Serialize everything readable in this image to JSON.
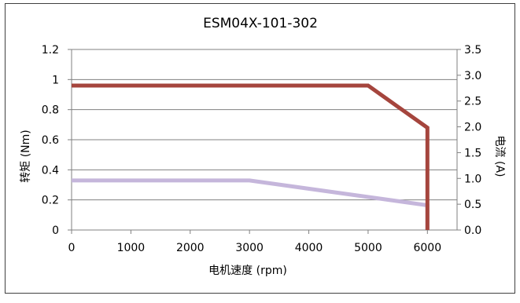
{
  "chart_data": {
    "type": "line",
    "title": "ESM04X-101-302",
    "xlabel": "电机速度 (rpm)",
    "ylabel_left": "转矩 (Nm)",
    "ylabel_right": "电流 (A)",
    "xlim": [
      0,
      6500
    ],
    "ylim_left": [
      0,
      1.2
    ],
    "ylim_right": [
      0,
      3.5
    ],
    "x_ticks": [
      "0",
      "1000",
      "2000",
      "3000",
      "4000",
      "5000",
      "6000"
    ],
    "y_left_ticks": [
      "0",
      "0.2",
      "0.4",
      "0.6",
      "0.8",
      "1",
      "1.2"
    ],
    "y_right_ticks": [
      "0.0",
      "0.5",
      "1.0",
      "1.5",
      "2.0",
      "2.5",
      "3.0",
      "3.5"
    ],
    "grid": true,
    "legend": "none",
    "series": [
      {
        "axis": "left",
        "color": "#a5453d",
        "points": [
          [
            0,
            0.96
          ],
          [
            5000,
            0.96
          ],
          [
            6000,
            0.68
          ],
          [
            6000,
            0
          ]
        ]
      },
      {
        "axis": "right",
        "color": "#c5b6db",
        "points": [
          [
            0,
            0.96
          ],
          [
            3000,
            0.96
          ],
          [
            6000,
            0.48
          ],
          [
            6000,
            0
          ]
        ]
      }
    ]
  }
}
